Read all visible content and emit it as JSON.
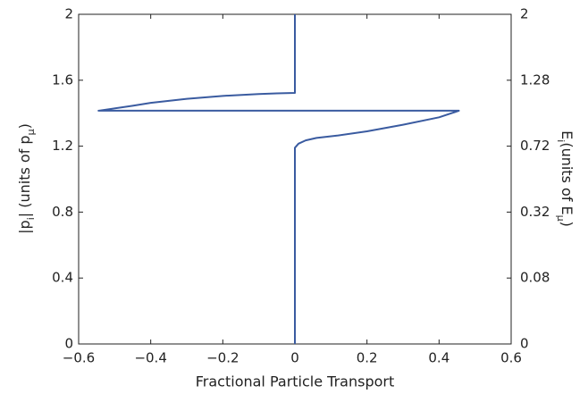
{
  "chart_data": {
    "type": "line",
    "x": [
      0,
      0,
      0.01,
      0.03,
      0.06,
      0.12,
      0.2,
      0.3,
      0.4,
      0.455,
      -0.545,
      -0.45,
      -0.4,
      -0.3,
      -0.2,
      -0.1,
      -0.05,
      0,
      0,
      0
    ],
    "values": [
      0,
      1.19,
      1.215,
      1.235,
      1.25,
      1.265,
      1.29,
      1.33,
      1.375,
      1.415,
      1.415,
      1.445,
      1.463,
      1.487,
      1.505,
      1.516,
      1.52,
      1.523,
      1.523,
      2
    ],
    "color": "#3a5ba0",
    "xlabel": "Fractional Particle Transport",
    "ylabel": [
      {
        "text": "|p"
      },
      {
        "text": "i",
        "sub": true
      },
      {
        "text": "| (units of p"
      },
      {
        "text": "μ",
        "sub": true
      },
      {
        "text": ")"
      }
    ],
    "y2label": [
      {
        "text": "E"
      },
      {
        "text": "i",
        "sub": true
      },
      {
        "text": "(units of E"
      },
      {
        "text": "μ",
        "sub": true
      },
      {
        "text": ")"
      }
    ],
    "xlim": [
      -0.6,
      0.6
    ],
    "xticks": [
      {
        "value": -0.6,
        "label": "−0.6"
      },
      {
        "value": -0.4,
        "label": "−0.4"
      },
      {
        "value": -0.2,
        "label": "−0.2"
      },
      0,
      0.2,
      0.4,
      0.6
    ],
    "ylim": [
      0,
      2
    ],
    "yticks": [
      0,
      0.4,
      0.8,
      1.2,
      1.6,
      2
    ],
    "y2lim": [
      0,
      2
    ],
    "y2scale": "sqrt",
    "y2ticks": [
      0,
      0.08,
      0.32,
      0.72,
      1.28,
      2
    ]
  }
}
